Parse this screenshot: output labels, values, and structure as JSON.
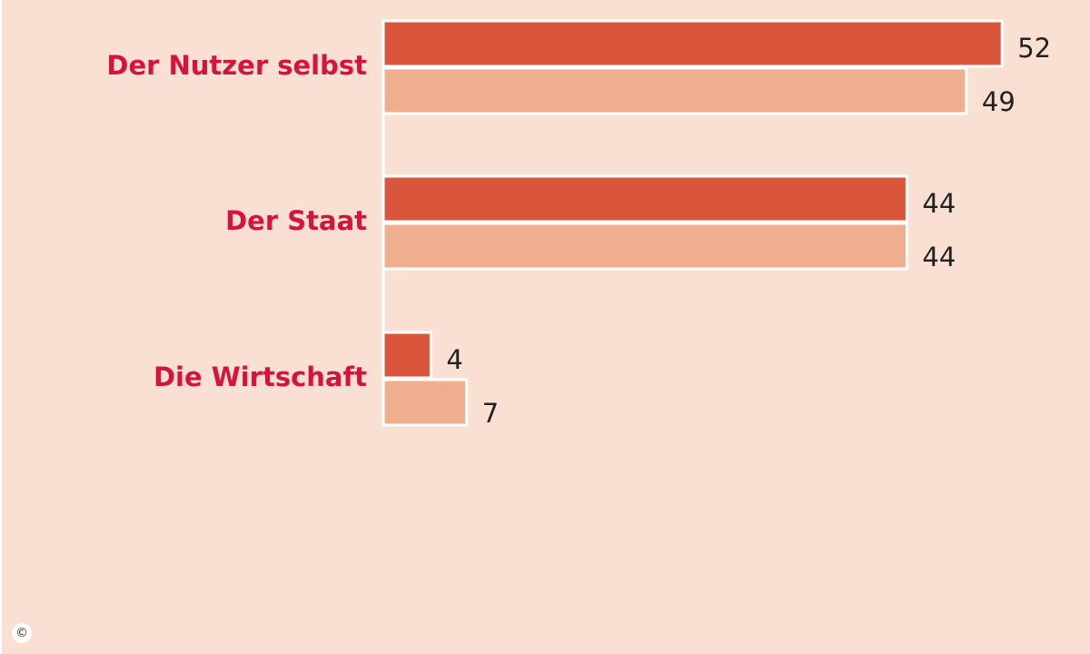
{
  "chart_data": {
    "type": "bar",
    "orientation": "horizontal",
    "categories": [
      "Der Nutzer selbst",
      "Der Staat",
      "Die Wirtschaft"
    ],
    "series": [
      {
        "values": [
          52,
          44,
          4
        ]
      },
      {
        "values": [
          49,
          44,
          7
        ]
      }
    ],
    "value_labels": [
      [
        "52",
        "44",
        "4"
      ],
      [
        "49",
        "44",
        "7"
      ]
    ],
    "xlim": [
      0,
      52
    ],
    "grid": false,
    "legend": "none"
  },
  "colors": {
    "background": "#f9e0d2",
    "series_1": "#d9553b",
    "series_2": "#efaf8f",
    "category_label": "#d6133a",
    "value_label": "#222222",
    "bar_outline": "#ffffff"
  },
  "copyright_symbol": "©"
}
